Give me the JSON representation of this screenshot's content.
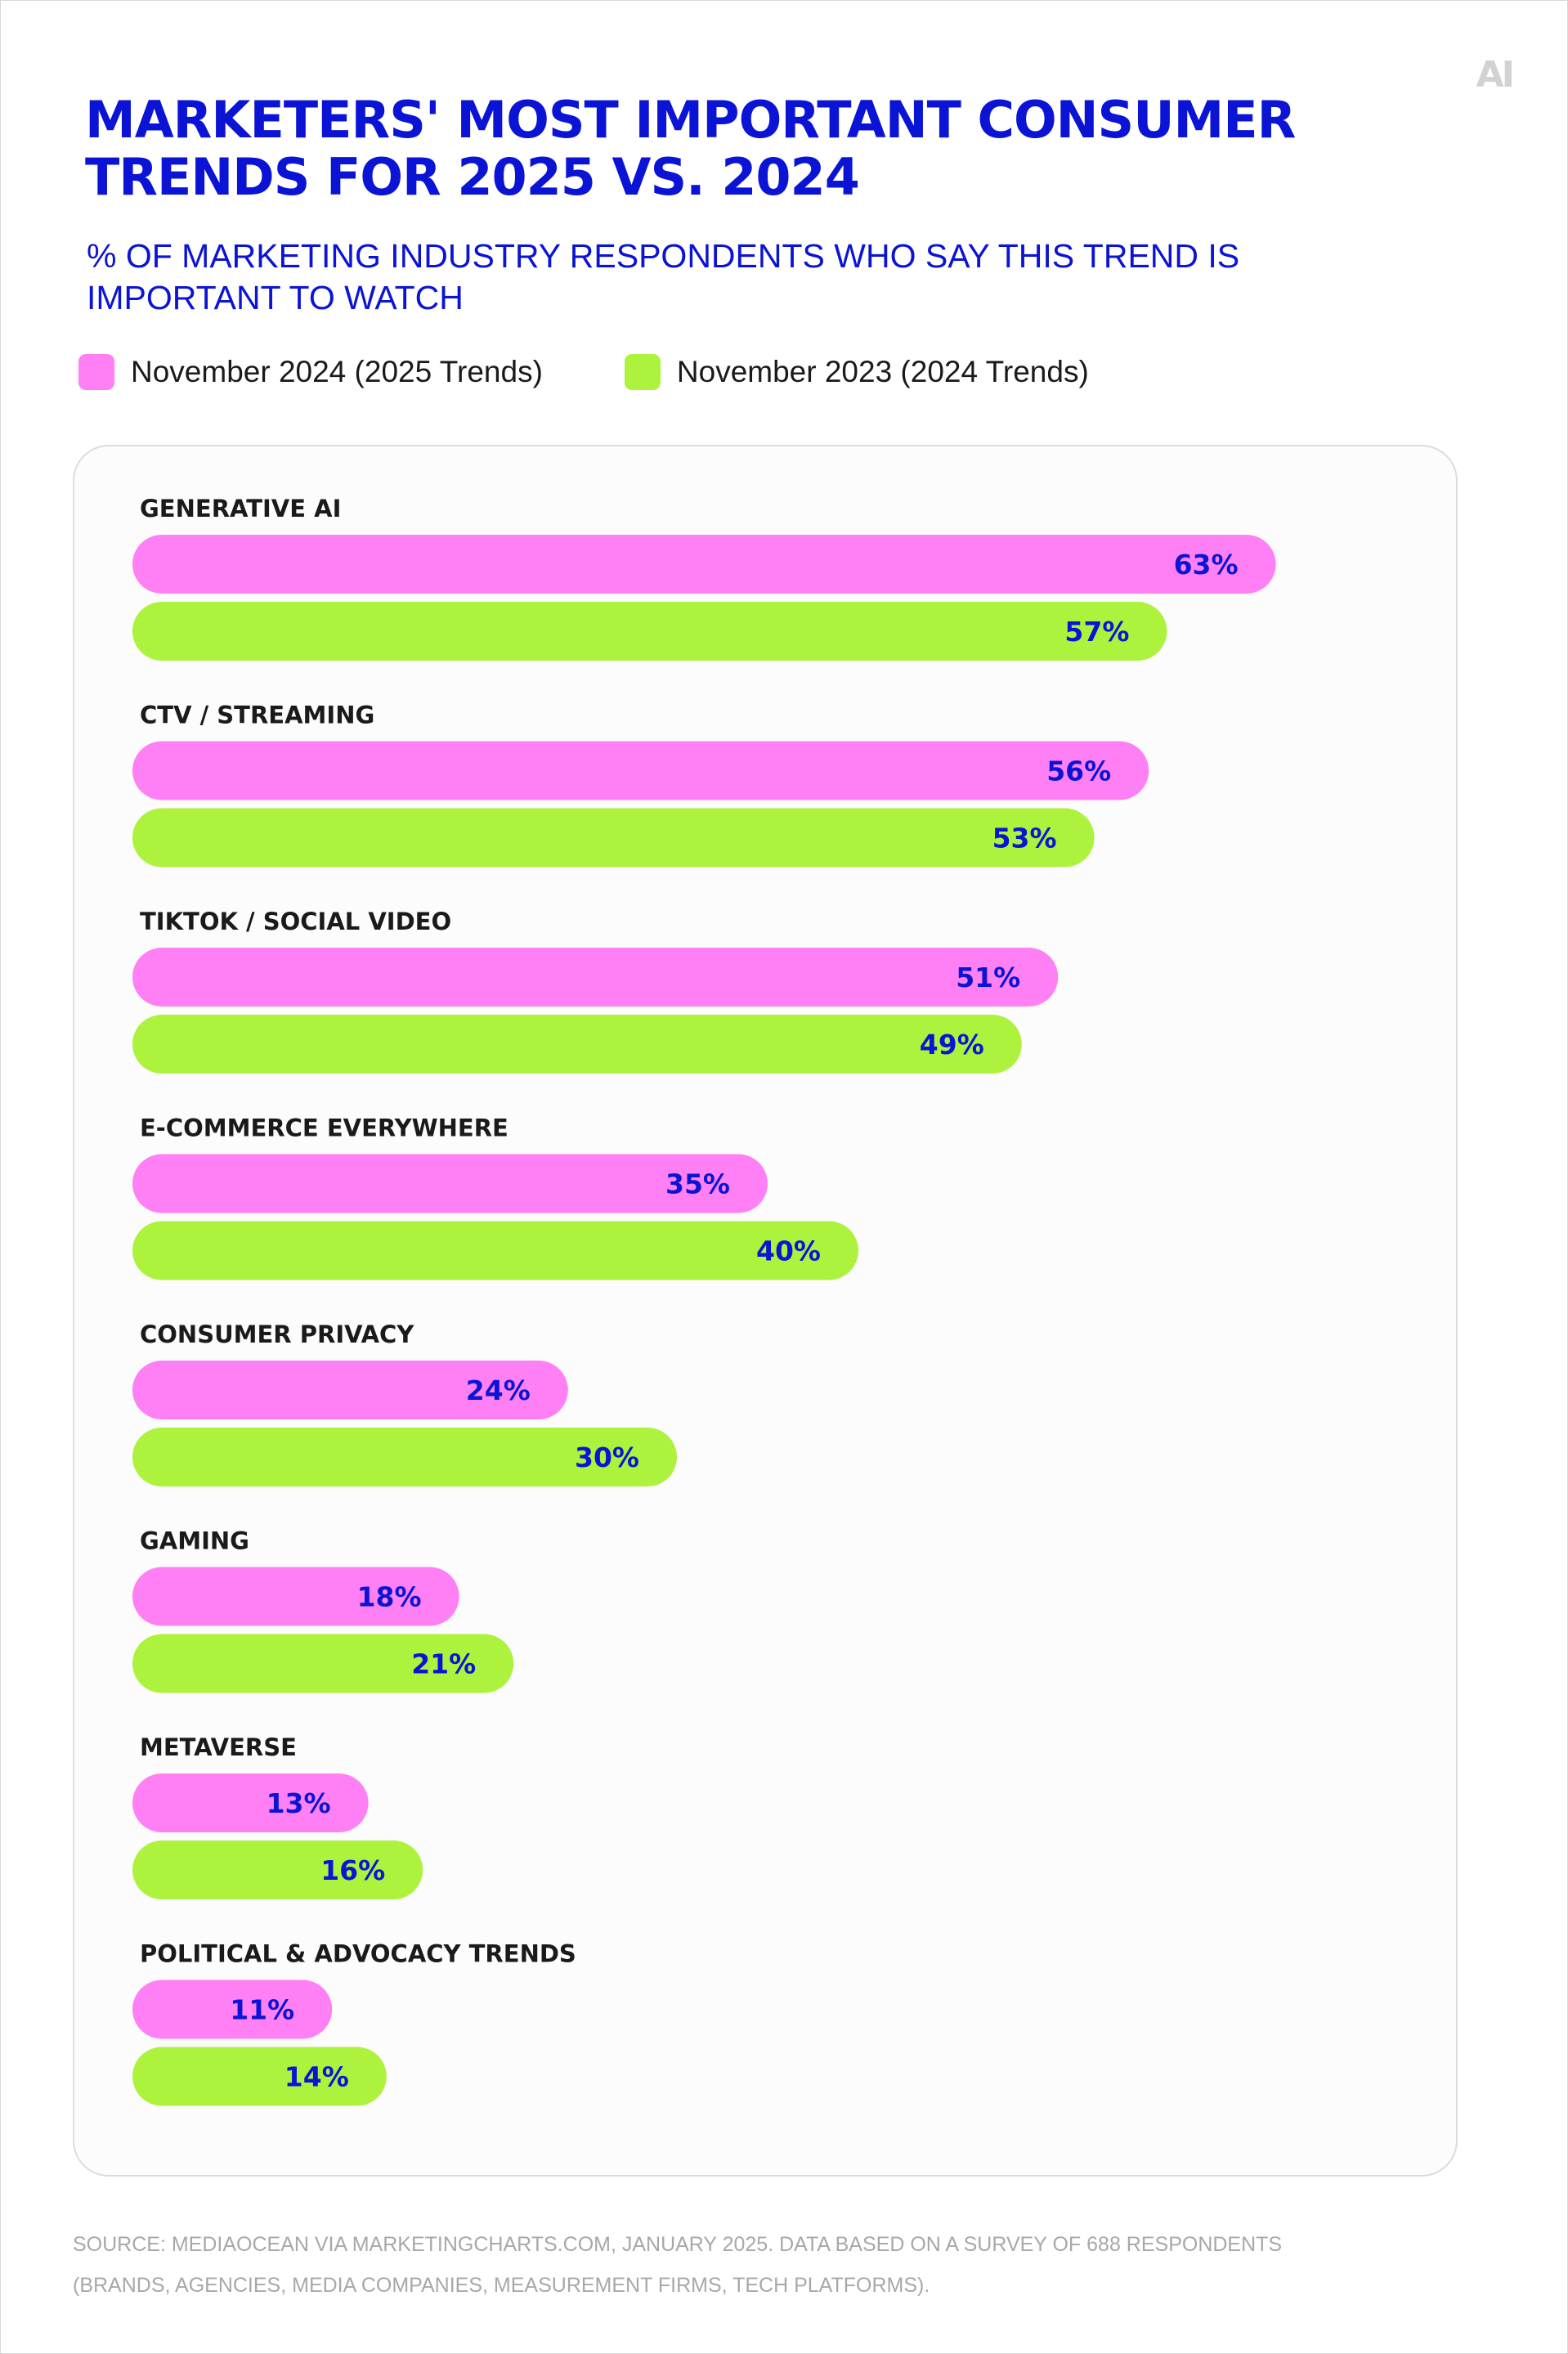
{
  "brand": {
    "logo_text": "AI"
  },
  "header": {
    "title": "MARKETERS' MOST IMPORTANT CONSUMER TRENDS FOR 2025 VS. 2024",
    "subtitle": "% OF MARKETING INDUSTRY RESPONDENTS WHO SAY THIS TREND IS IMPORTANT TO WATCH"
  },
  "legend": {
    "placement": "top-left",
    "items": [
      {
        "label": "November 2024 (2025 Trends)",
        "color": "#ff80f5"
      },
      {
        "label": "November 2023 (2024 Trends)",
        "color": "#adf23d"
      }
    ]
  },
  "chart_data": {
    "type": "bar",
    "orientation": "horizontal",
    "title": "MARKETERS' MOST IMPORTANT CONSUMER TRENDS FOR 2025 VS. 2024",
    "subtitle": "% OF MARKETING INDUSTRY RESPONDENTS WHO SAY THIS TREND IS IMPORTANT TO WATCH",
    "xlabel": "",
    "ylabel": "",
    "value_suffix": "%",
    "xlim": [
      0,
      70
    ],
    "grid": false,
    "legend_placement": "top-left",
    "label_color": "#0b14d4",
    "categories": [
      "GENERATIVE AI",
      "CTV / STREAMING",
      "TIKTOK / SOCIAL VIDEO",
      "E-COMMERCE EVERYWHERE",
      "CONSUMER PRIVACY",
      "GAMING",
      "METAVERSE",
      "POLITICAL & ADVOCACY TRENDS"
    ],
    "series": [
      {
        "name": "November 2024 (2025 Trends)",
        "color": "#ff80f5",
        "values": [
          63,
          56,
          51,
          35,
          24,
          18,
          13,
          11
        ]
      },
      {
        "name": "November 2023 (2024 Trends)",
        "color": "#adf23d",
        "values": [
          57,
          53,
          49,
          40,
          30,
          21,
          16,
          14
        ]
      }
    ]
  },
  "footer": {
    "source": "SOURCE: MEDIAOCEAN VIA MARKETINGCHARTS.COM, JANUARY 2025. DATA BASED ON A SURVEY OF 688 RESPONDENTS (BRANDS, AGENCIES, MEDIA COMPANIES, MEASUREMENT FIRMS, TECH PLATFORMS)."
  }
}
